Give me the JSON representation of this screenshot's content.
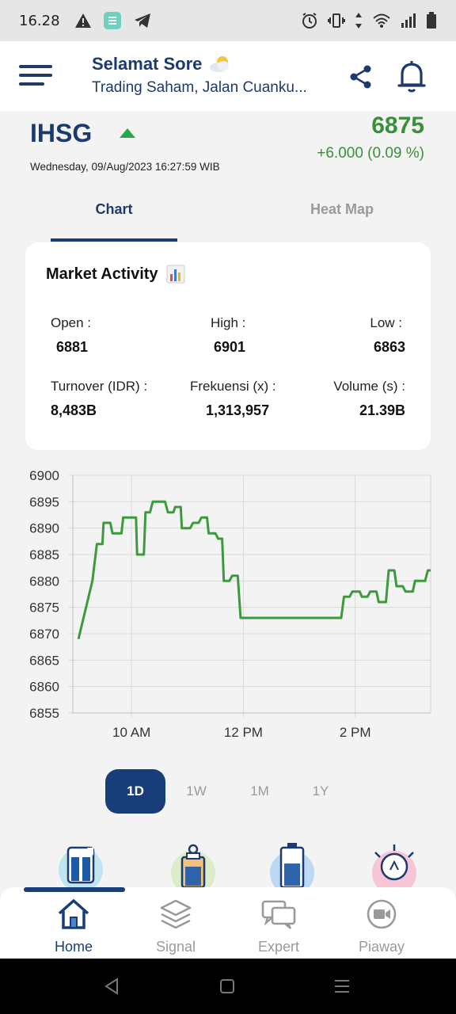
{
  "status_bar": {
    "time": "16.28"
  },
  "header": {
    "greeting_title": "Selamat Sore",
    "greeting_subtitle": "Trading Saham, Jalan Cuanku..."
  },
  "index": {
    "name": "IHSG",
    "datetime": "Wednesday, 09/Aug/2023 16:27:59 WIB",
    "value": "6875",
    "change": "+6.000 (0.09 %)",
    "trend": "up"
  },
  "tabs": [
    {
      "label": "Chart",
      "active": true
    },
    {
      "label": "Heat Map",
      "active": false
    }
  ],
  "market_activity": {
    "title": "Market Activity",
    "stats": [
      {
        "label": "Open :",
        "value": "6881"
      },
      {
        "label": "High :",
        "value": "6901"
      },
      {
        "label": "Low :",
        "value": "6863"
      },
      {
        "label": "Turnover (IDR) :",
        "value": "8,483B"
      },
      {
        "label": "Frekuensi (x) :",
        "value": "1,313,957"
      },
      {
        "label": "Volume (s) :",
        "value": "21.39B"
      }
    ]
  },
  "chart_data": {
    "type": "line",
    "x_unit": "hour",
    "ylim": [
      6855,
      6900
    ],
    "xlim": [
      8.95,
      15.35
    ],
    "y_ticks": [
      "6900",
      "6895",
      "6890",
      "6885",
      "6880",
      "6875",
      "6870",
      "6865",
      "6860",
      "6855"
    ],
    "x_ticks": [
      {
        "x": 10,
        "label": "10 AM"
      },
      {
        "x": 12,
        "label": "12 PM"
      },
      {
        "x": 14,
        "label": "2 PM"
      }
    ],
    "grid": true,
    "color": "#3c9a3c",
    "points": [
      [
        9.05,
        6869
      ],
      [
        9.3,
        6880
      ],
      [
        9.38,
        6887
      ],
      [
        9.48,
        6887
      ],
      [
        9.5,
        6891
      ],
      [
        9.62,
        6891
      ],
      [
        9.66,
        6889
      ],
      [
        9.82,
        6889
      ],
      [
        9.85,
        6892
      ],
      [
        10.08,
        6892
      ],
      [
        10.1,
        6885
      ],
      [
        10.22,
        6885
      ],
      [
        10.25,
        6893
      ],
      [
        10.33,
        6893
      ],
      [
        10.38,
        6895
      ],
      [
        10.6,
        6895
      ],
      [
        10.65,
        6893
      ],
      [
        10.75,
        6893
      ],
      [
        10.78,
        6894
      ],
      [
        10.88,
        6894
      ],
      [
        10.9,
        6890
      ],
      [
        11.05,
        6890
      ],
      [
        11.1,
        6891
      ],
      [
        11.2,
        6891
      ],
      [
        11.25,
        6892
      ],
      [
        11.35,
        6892
      ],
      [
        11.38,
        6889
      ],
      [
        11.5,
        6889
      ],
      [
        11.55,
        6888
      ],
      [
        11.62,
        6888
      ],
      [
        11.65,
        6880
      ],
      [
        11.75,
        6880
      ],
      [
        11.8,
        6881
      ],
      [
        11.9,
        6881
      ],
      [
        11.95,
        6873
      ],
      [
        13.75,
        6873
      ],
      [
        13.8,
        6877
      ],
      [
        13.9,
        6877
      ],
      [
        13.95,
        6878
      ],
      [
        14.08,
        6878
      ],
      [
        14.12,
        6877
      ],
      [
        14.22,
        6877
      ],
      [
        14.27,
        6878
      ],
      [
        14.38,
        6878
      ],
      [
        14.42,
        6876
      ],
      [
        14.55,
        6876
      ],
      [
        14.6,
        6882
      ],
      [
        14.7,
        6882
      ],
      [
        14.74,
        6879
      ],
      [
        14.85,
        6879
      ],
      [
        14.9,
        6878
      ],
      [
        15.03,
        6878
      ],
      [
        15.07,
        6880
      ],
      [
        15.25,
        6880
      ],
      [
        15.3,
        6882
      ],
      [
        15.35,
        6882
      ]
    ]
  },
  "ranges": [
    {
      "label": "1D",
      "active": true
    },
    {
      "label": "1W",
      "active": false
    },
    {
      "label": "1M",
      "active": false
    },
    {
      "label": "1Y",
      "active": false
    }
  ],
  "features": [
    "book-icon",
    "clipboard-icon",
    "battery-icon",
    "lightbulb-icon"
  ],
  "bottom_nav": [
    {
      "label": "Home",
      "icon": "home-icon",
      "active": true
    },
    {
      "label": "Signal",
      "icon": "layers-icon",
      "active": false
    },
    {
      "label": "Expert",
      "icon": "chat-icon",
      "active": false
    },
    {
      "label": "Piaway",
      "icon": "video-icon",
      "active": false
    }
  ]
}
